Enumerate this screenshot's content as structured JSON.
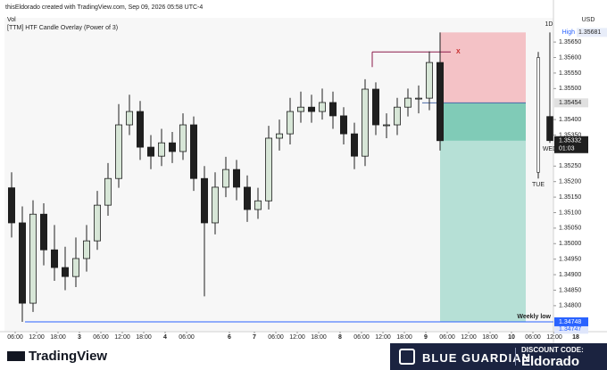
{
  "header": {
    "credit": "thisEldorado created with TradingView.com, Sep 09, 2026 05:58 UTC-4",
    "indicator_vol": "Vol",
    "indicator_overlay": "[TTM] HTF Candle Overlay (Power of 3)"
  },
  "chart_data": {
    "type": "candlestick",
    "currency": "USD",
    "x": [
      5,
      8,
      11,
      14,
      17,
      20,
      23,
      26,
      29,
      32,
      35,
      38,
      41,
      44,
      47,
      50,
      53,
      56,
      59,
      62,
      65,
      68,
      71,
      74,
      77,
      80,
      83,
      86,
      89,
      92,
      95,
      98,
      101,
      104,
      107,
      110,
      113,
      116,
      119,
      122,
      125
    ],
    "open": [
      1.3518,
      1.35067,
      1.34808,
      1.35095,
      1.3498,
      1.34923,
      1.34894,
      1.34952,
      1.35009,
      1.35124,
      1.3521,
      1.35383,
      1.35426,
      1.35311,
      1.35282,
      1.35325,
      1.35297,
      1.35383,
      1.3521,
      1.35067,
      1.35182,
      1.35239,
      1.35182,
      1.3511,
      1.35138,
      1.3534,
      1.35354,
      1.35426,
      1.3544,
      1.35426,
      1.35455,
      1.35412,
      1.35354,
      1.35282,
      1.35498,
      1.35383,
      1.35383,
      1.3544,
      1.35469,
      1.35469,
      1.35584
    ],
    "high": [
      1.3523,
      1.3512,
      1.3514,
      1.3513,
      1.3506,
      1.3499,
      1.3502,
      1.3506,
      1.3517,
      1.3526,
      1.3545,
      1.3548,
      1.3546,
      1.3535,
      1.3537,
      1.3536,
      1.3542,
      1.3541,
      1.3525,
      1.3523,
      1.3528,
      1.3527,
      1.3522,
      1.3518,
      1.3538,
      1.354,
      1.3547,
      1.3549,
      1.3548,
      1.355,
      1.3549,
      1.3544,
      1.3539,
      1.3553,
      1.3552,
      1.3542,
      1.3547,
      1.355,
      1.3551,
      1.3562,
      1.35681
    ],
    "low": [
      1.3502,
      1.34748,
      1.3478,
      1.3493,
      1.3488,
      1.3485,
      1.3486,
      1.3491,
      1.3498,
      1.3509,
      1.3518,
      1.3535,
      1.3527,
      1.3524,
      1.3525,
      1.3526,
      1.3527,
      1.3517,
      1.3483,
      1.3503,
      1.3515,
      1.3514,
      1.3507,
      1.3508,
      1.3511,
      1.353,
      1.3532,
      1.3539,
      1.3539,
      1.354,
      1.3537,
      1.3532,
      1.3524,
      1.3525,
      1.3535,
      1.3534,
      1.3535,
      1.3541,
      1.3542,
      1.3543,
      1.353
    ],
    "close": [
      1.35067,
      1.34808,
      1.35095,
      1.3498,
      1.34923,
      1.34894,
      1.34952,
      1.35009,
      1.35124,
      1.3521,
      1.35383,
      1.35426,
      1.35311,
      1.35282,
      1.35325,
      1.35297,
      1.35383,
      1.3521,
      1.35067,
      1.35182,
      1.35239,
      1.35182,
      1.3511,
      1.35138,
      1.3534,
      1.35354,
      1.35426,
      1.3544,
      1.35426,
      1.35455,
      1.35412,
      1.35354,
      1.35282,
      1.35498,
      1.35383,
      1.35383,
      1.3544,
      1.35469,
      1.35469,
      1.35584,
      1.35332
    ],
    "up_color": "#d7e6d7",
    "down_color": "#1f1f1f",
    "xlim": [
      3,
      157
    ],
    "ylim": [
      1.34722,
      1.35728
    ],
    "grid": false,
    "xticks": [
      {
        "value": 6,
        "label": "06:00"
      },
      {
        "value": 12,
        "label": "12:00"
      },
      {
        "value": 18,
        "label": "18:00"
      },
      {
        "value": 24,
        "label": "3"
      },
      {
        "value": 30,
        "label": "06:00"
      },
      {
        "value": 36,
        "label": "12:00"
      },
      {
        "value": 42,
        "label": "18:00"
      },
      {
        "value": 48,
        "label": "4"
      },
      {
        "value": 54,
        "label": "06:00"
      },
      {
        "value": 66,
        "label": "6"
      },
      {
        "value": 73,
        "label": "7"
      },
      {
        "value": 79,
        "label": "06:00"
      },
      {
        "value": 85,
        "label": "12:00"
      },
      {
        "value": 91,
        "label": "18:00"
      },
      {
        "value": 97,
        "label": "8"
      },
      {
        "value": 103,
        "label": "06:00"
      },
      {
        "value": 109,
        "label": "12:00"
      },
      {
        "value": 115,
        "label": "18:00"
      },
      {
        "value": 121,
        "label": "9"
      },
      {
        "value": 127,
        "label": "06:00"
      },
      {
        "value": 133,
        "label": "12:00"
      },
      {
        "value": 139,
        "label": "18:00"
      },
      {
        "value": 145,
        "label": "10"
      },
      {
        "value": 151,
        "label": "06:00"
      },
      {
        "value": 157,
        "label": "12:00"
      },
      {
        "value": 163,
        "label": "18"
      }
    ],
    "yticks": [
      {
        "value": 1.3565,
        "label": "1.35650"
      },
      {
        "value": 1.356,
        "label": "1.35600"
      },
      {
        "value": 1.3555,
        "label": "1.35550"
      },
      {
        "value": 1.355,
        "label": "1.35500"
      },
      {
        "value": 1.354,
        "label": "1.35400"
      },
      {
        "value": 1.3535,
        "label": "1.35350"
      },
      {
        "value": 1.3525,
        "label": "1.35250"
      },
      {
        "value": 1.352,
        "label": "1.35200"
      },
      {
        "value": 1.3515,
        "label": "1.35150"
      },
      {
        "value": 1.351,
        "label": "1.35100"
      },
      {
        "value": 1.3505,
        "label": "1.35050"
      },
      {
        "value": 1.35,
        "label": "1.35000"
      },
      {
        "value": 1.3495,
        "label": "1.34950"
      },
      {
        "value": 1.349,
        "label": "1.34900"
      },
      {
        "value": 1.3485,
        "label": "1.34850"
      },
      {
        "value": 1.348,
        "label": "1.34800"
      }
    ],
    "high_label": "High",
    "high_value": 1.35681,
    "last_value": 1.35332,
    "countdown": "01:03",
    "weekly_low": {
      "label": "Weekly low",
      "value": 1.34748,
      "alt_value": 1.34747
    },
    "position": {
      "entry": 1.35454,
      "stop": 1.35681,
      "target": 1.34748,
      "x": [
        125,
        149
      ]
    },
    "marker": {
      "label": "X",
      "value": 1.35618,
      "x": [
        106,
        128
      ]
    },
    "htf": {
      "timeframe": "1D",
      "candles": [
        {
          "label": "TUE",
          "open": 1.3523,
          "high": 1.35618,
          "low": 1.3521,
          "close": 1.356
        },
        {
          "label": "WED",
          "open": 1.3541,
          "high": 1.35681,
          "low": 1.35325,
          "close": 1.35332
        }
      ]
    }
  },
  "footer": {
    "brand": "TradingView",
    "sponsor": "BLUE GUARDIAN",
    "code_title": "DISCOUNT CODE:",
    "code": "Eldorado"
  }
}
